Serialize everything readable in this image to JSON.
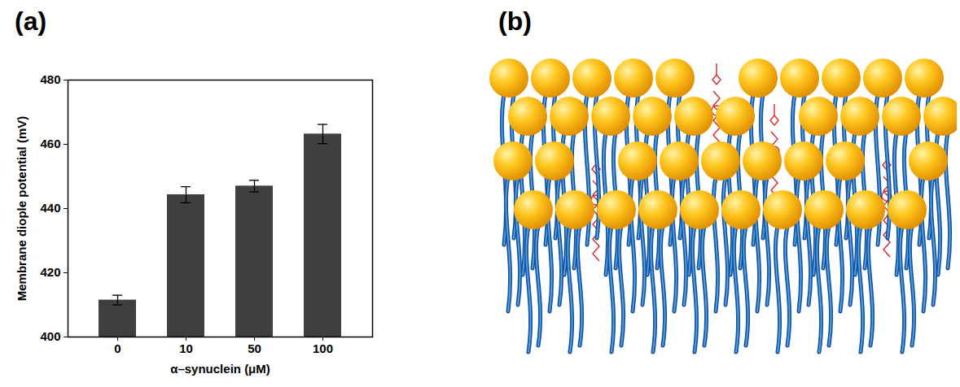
{
  "chart_data": {
    "type": "bar",
    "x_label": "α–synuclein (μM)",
    "y_label": "Membrane diople potential (mV)",
    "categories": [
      "0",
      "10",
      "50",
      "100"
    ],
    "values": [
      411.5,
      444.3,
      447.0,
      463.2
    ],
    "errors": [
      1.5,
      2.5,
      1.8,
      3.0
    ],
    "color": "#3f3f3f",
    "ylim": [
      400,
      480
    ],
    "yticks": [
      400,
      420,
      440,
      460,
      480
    ],
    "grid": false
  },
  "panel_labels": [
    "(a)",
    "(b)"
  ]
}
